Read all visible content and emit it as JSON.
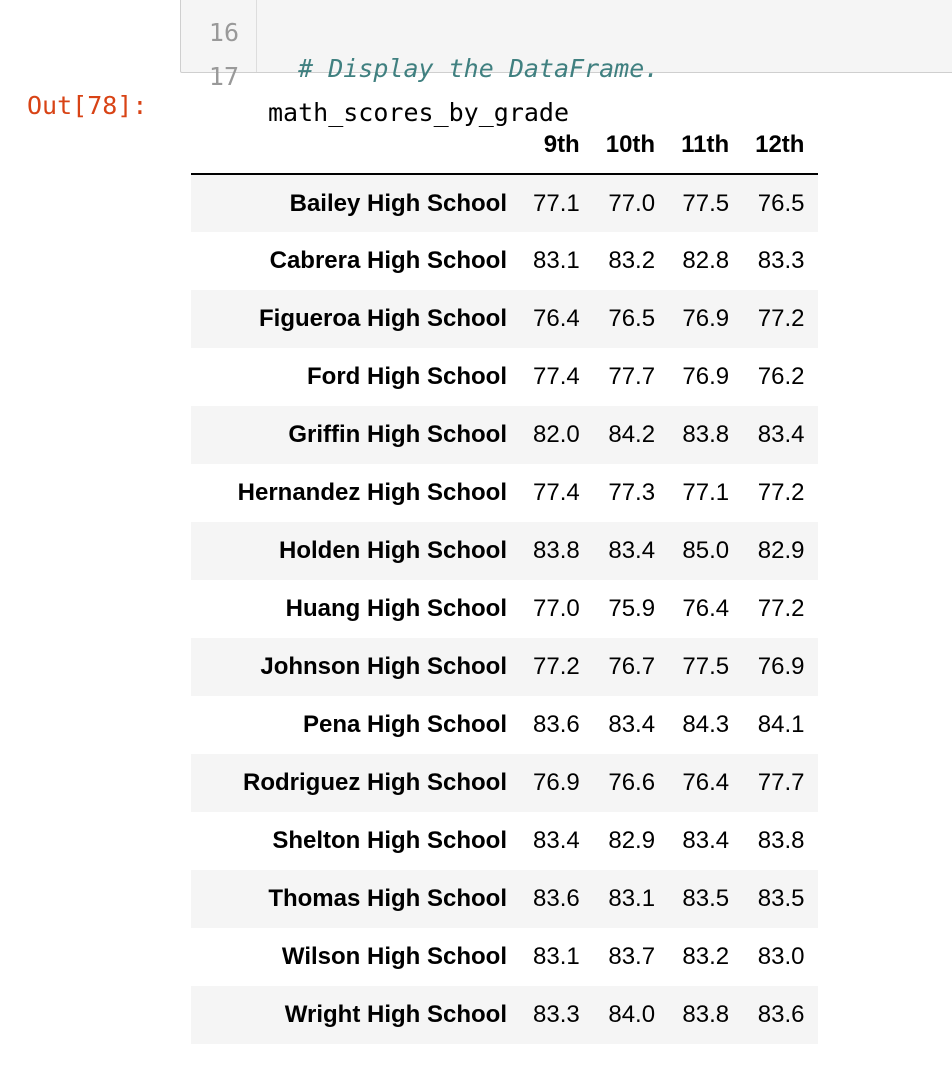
{
  "code_cell": {
    "lines": [
      {
        "number": "16",
        "code": "  # Display the DataFrame."
      },
      {
        "number": "17",
        "code": "math_scores_by_grade"
      }
    ]
  },
  "output": {
    "prompt": "Out[78]:"
  },
  "dataframe": {
    "columns": [
      "9th",
      "10th",
      "11th",
      "12th"
    ],
    "rows": [
      {
        "school": "Bailey High School",
        "values": [
          "77.1",
          "77.0",
          "77.5",
          "76.5"
        ]
      },
      {
        "school": "Cabrera High School",
        "values": [
          "83.1",
          "83.2",
          "82.8",
          "83.3"
        ]
      },
      {
        "school": "Figueroa High School",
        "values": [
          "76.4",
          "76.5",
          "76.9",
          "77.2"
        ]
      },
      {
        "school": "Ford High School",
        "values": [
          "77.4",
          "77.7",
          "76.9",
          "76.2"
        ]
      },
      {
        "school": "Griffin High School",
        "values": [
          "82.0",
          "84.2",
          "83.8",
          "83.4"
        ]
      },
      {
        "school": "Hernandez High School",
        "values": [
          "77.4",
          "77.3",
          "77.1",
          "77.2"
        ]
      },
      {
        "school": "Holden High School",
        "values": [
          "83.8",
          "83.4",
          "85.0",
          "82.9"
        ]
      },
      {
        "school": "Huang High School",
        "values": [
          "77.0",
          "75.9",
          "76.4",
          "77.2"
        ]
      },
      {
        "school": "Johnson High School",
        "values": [
          "77.2",
          "76.7",
          "77.5",
          "76.9"
        ]
      },
      {
        "school": "Pena High School",
        "values": [
          "83.6",
          "83.4",
          "84.3",
          "84.1"
        ]
      },
      {
        "school": "Rodriguez High School",
        "values": [
          "76.9",
          "76.6",
          "76.4",
          "77.7"
        ]
      },
      {
        "school": "Shelton High School",
        "values": [
          "83.4",
          "82.9",
          "83.4",
          "83.8"
        ]
      },
      {
        "school": "Thomas High School",
        "values": [
          "83.6",
          "83.1",
          "83.5",
          "83.5"
        ]
      },
      {
        "school": "Wilson High School",
        "values": [
          "83.1",
          "83.7",
          "83.2",
          "83.0"
        ]
      },
      {
        "school": "Wright High School",
        "values": [
          "83.3",
          "84.0",
          "83.8",
          "83.6"
        ]
      }
    ]
  },
  "colors": {
    "prompt": "#d84315",
    "comment": "#408080",
    "cell_background": "#f5f5f5",
    "stripe": "#f5f5f5"
  }
}
